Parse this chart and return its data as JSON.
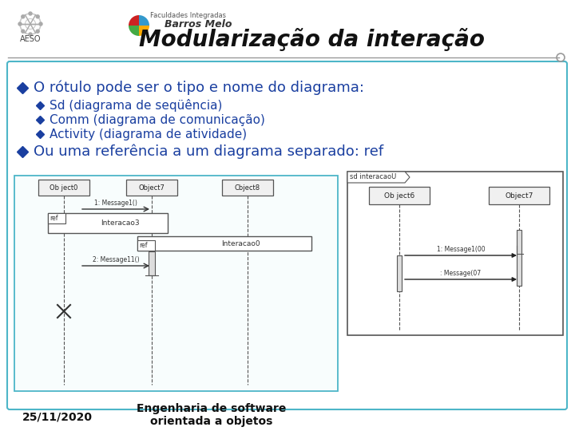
{
  "title": "Modularização da interação",
  "bg_color": "#ffffff",
  "slide_border_color": "#4db6c8",
  "bullet_color": "#1a3fa0",
  "bullet1": "O rótulo pode ser o tipo e nome do diagrama:",
  "sub_bullets": [
    "Sd (diagrama de seqüência)",
    "Comm (diagrama de comunicação)",
    "Activity (diagrama de atividade)"
  ],
  "bullet2": "Ou uma referência a um diagrama separado: ref",
  "footer_date": "25/11/2020",
  "footer_text": "Engenharia de software\norientada a objetos",
  "title_color": "#111111",
  "header_line_color": "#999999",
  "diagram_border": "#555555"
}
